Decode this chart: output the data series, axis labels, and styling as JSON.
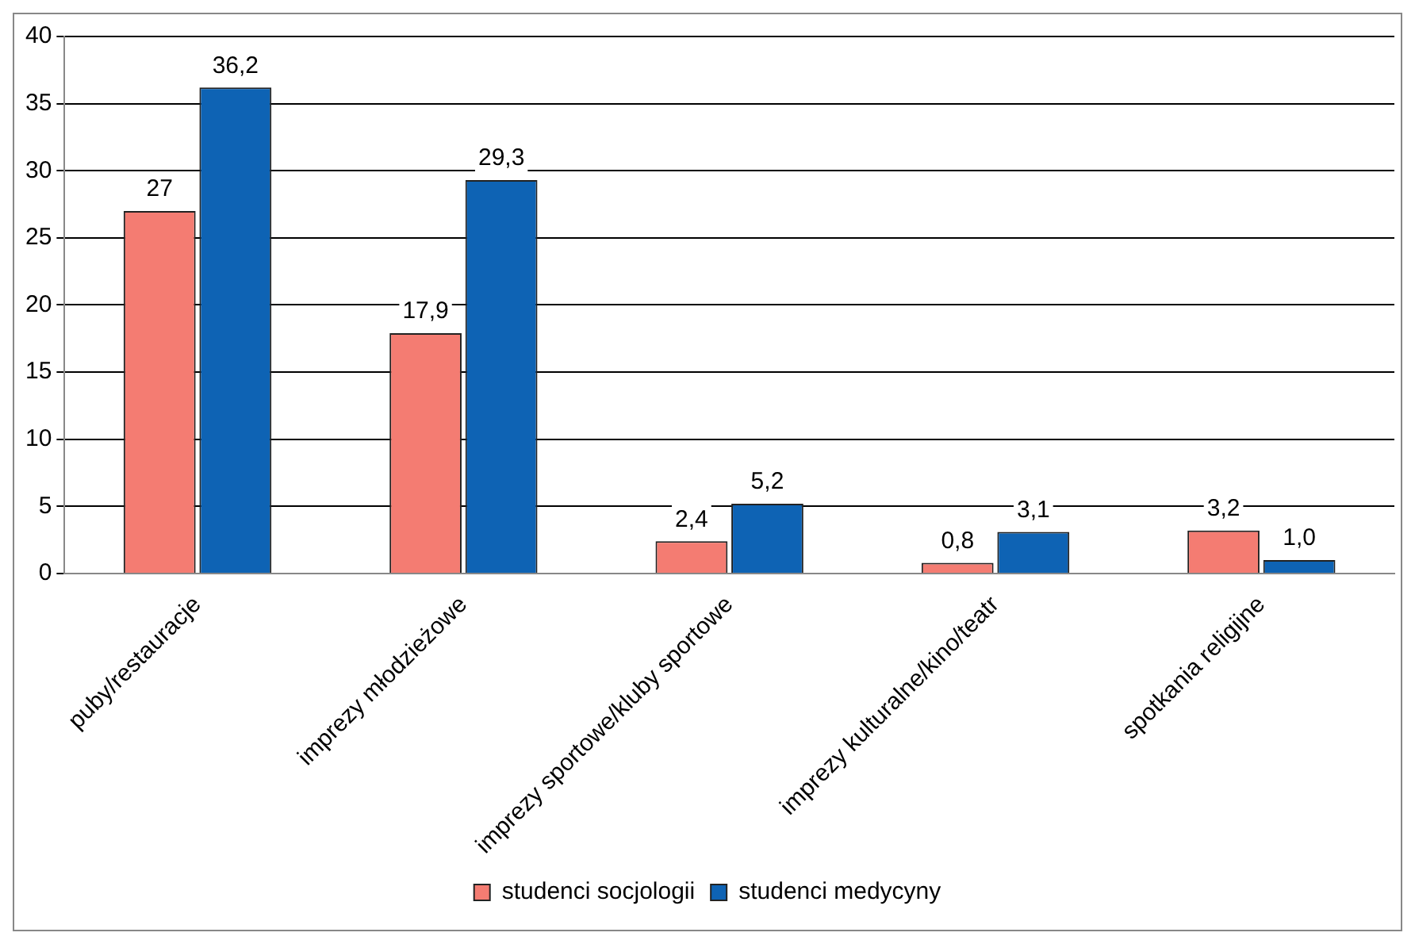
{
  "chart_data": {
    "type": "bar",
    "categories": [
      "puby/restauracje",
      "imprezy młodzieżowe",
      "imprezy sportowe/kluby sportowe",
      "imprezy kulturalne/kino/teatr",
      "spotkania religijne"
    ],
    "series": [
      {
        "name": "studenci socjologii",
        "color": "#f47c72",
        "values": [
          27,
          17.9,
          2.4,
          0.8,
          3.2
        ],
        "value_labels": [
          "27",
          "17,9",
          "2,4",
          "0,8",
          "3,2"
        ]
      },
      {
        "name": "studenci medycyny",
        "color": "#0e63b4",
        "values": [
          36.2,
          29.3,
          5.2,
          3.1,
          1.0
        ],
        "value_labels": [
          "36,2",
          "29,3",
          "5,2",
          "3,1",
          "1,0"
        ]
      }
    ],
    "ylim": [
      0,
      40
    ],
    "yticks": [
      0,
      5,
      10,
      15,
      20,
      25,
      30,
      35,
      40
    ],
    "grid": "y",
    "legend": "bottom"
  }
}
